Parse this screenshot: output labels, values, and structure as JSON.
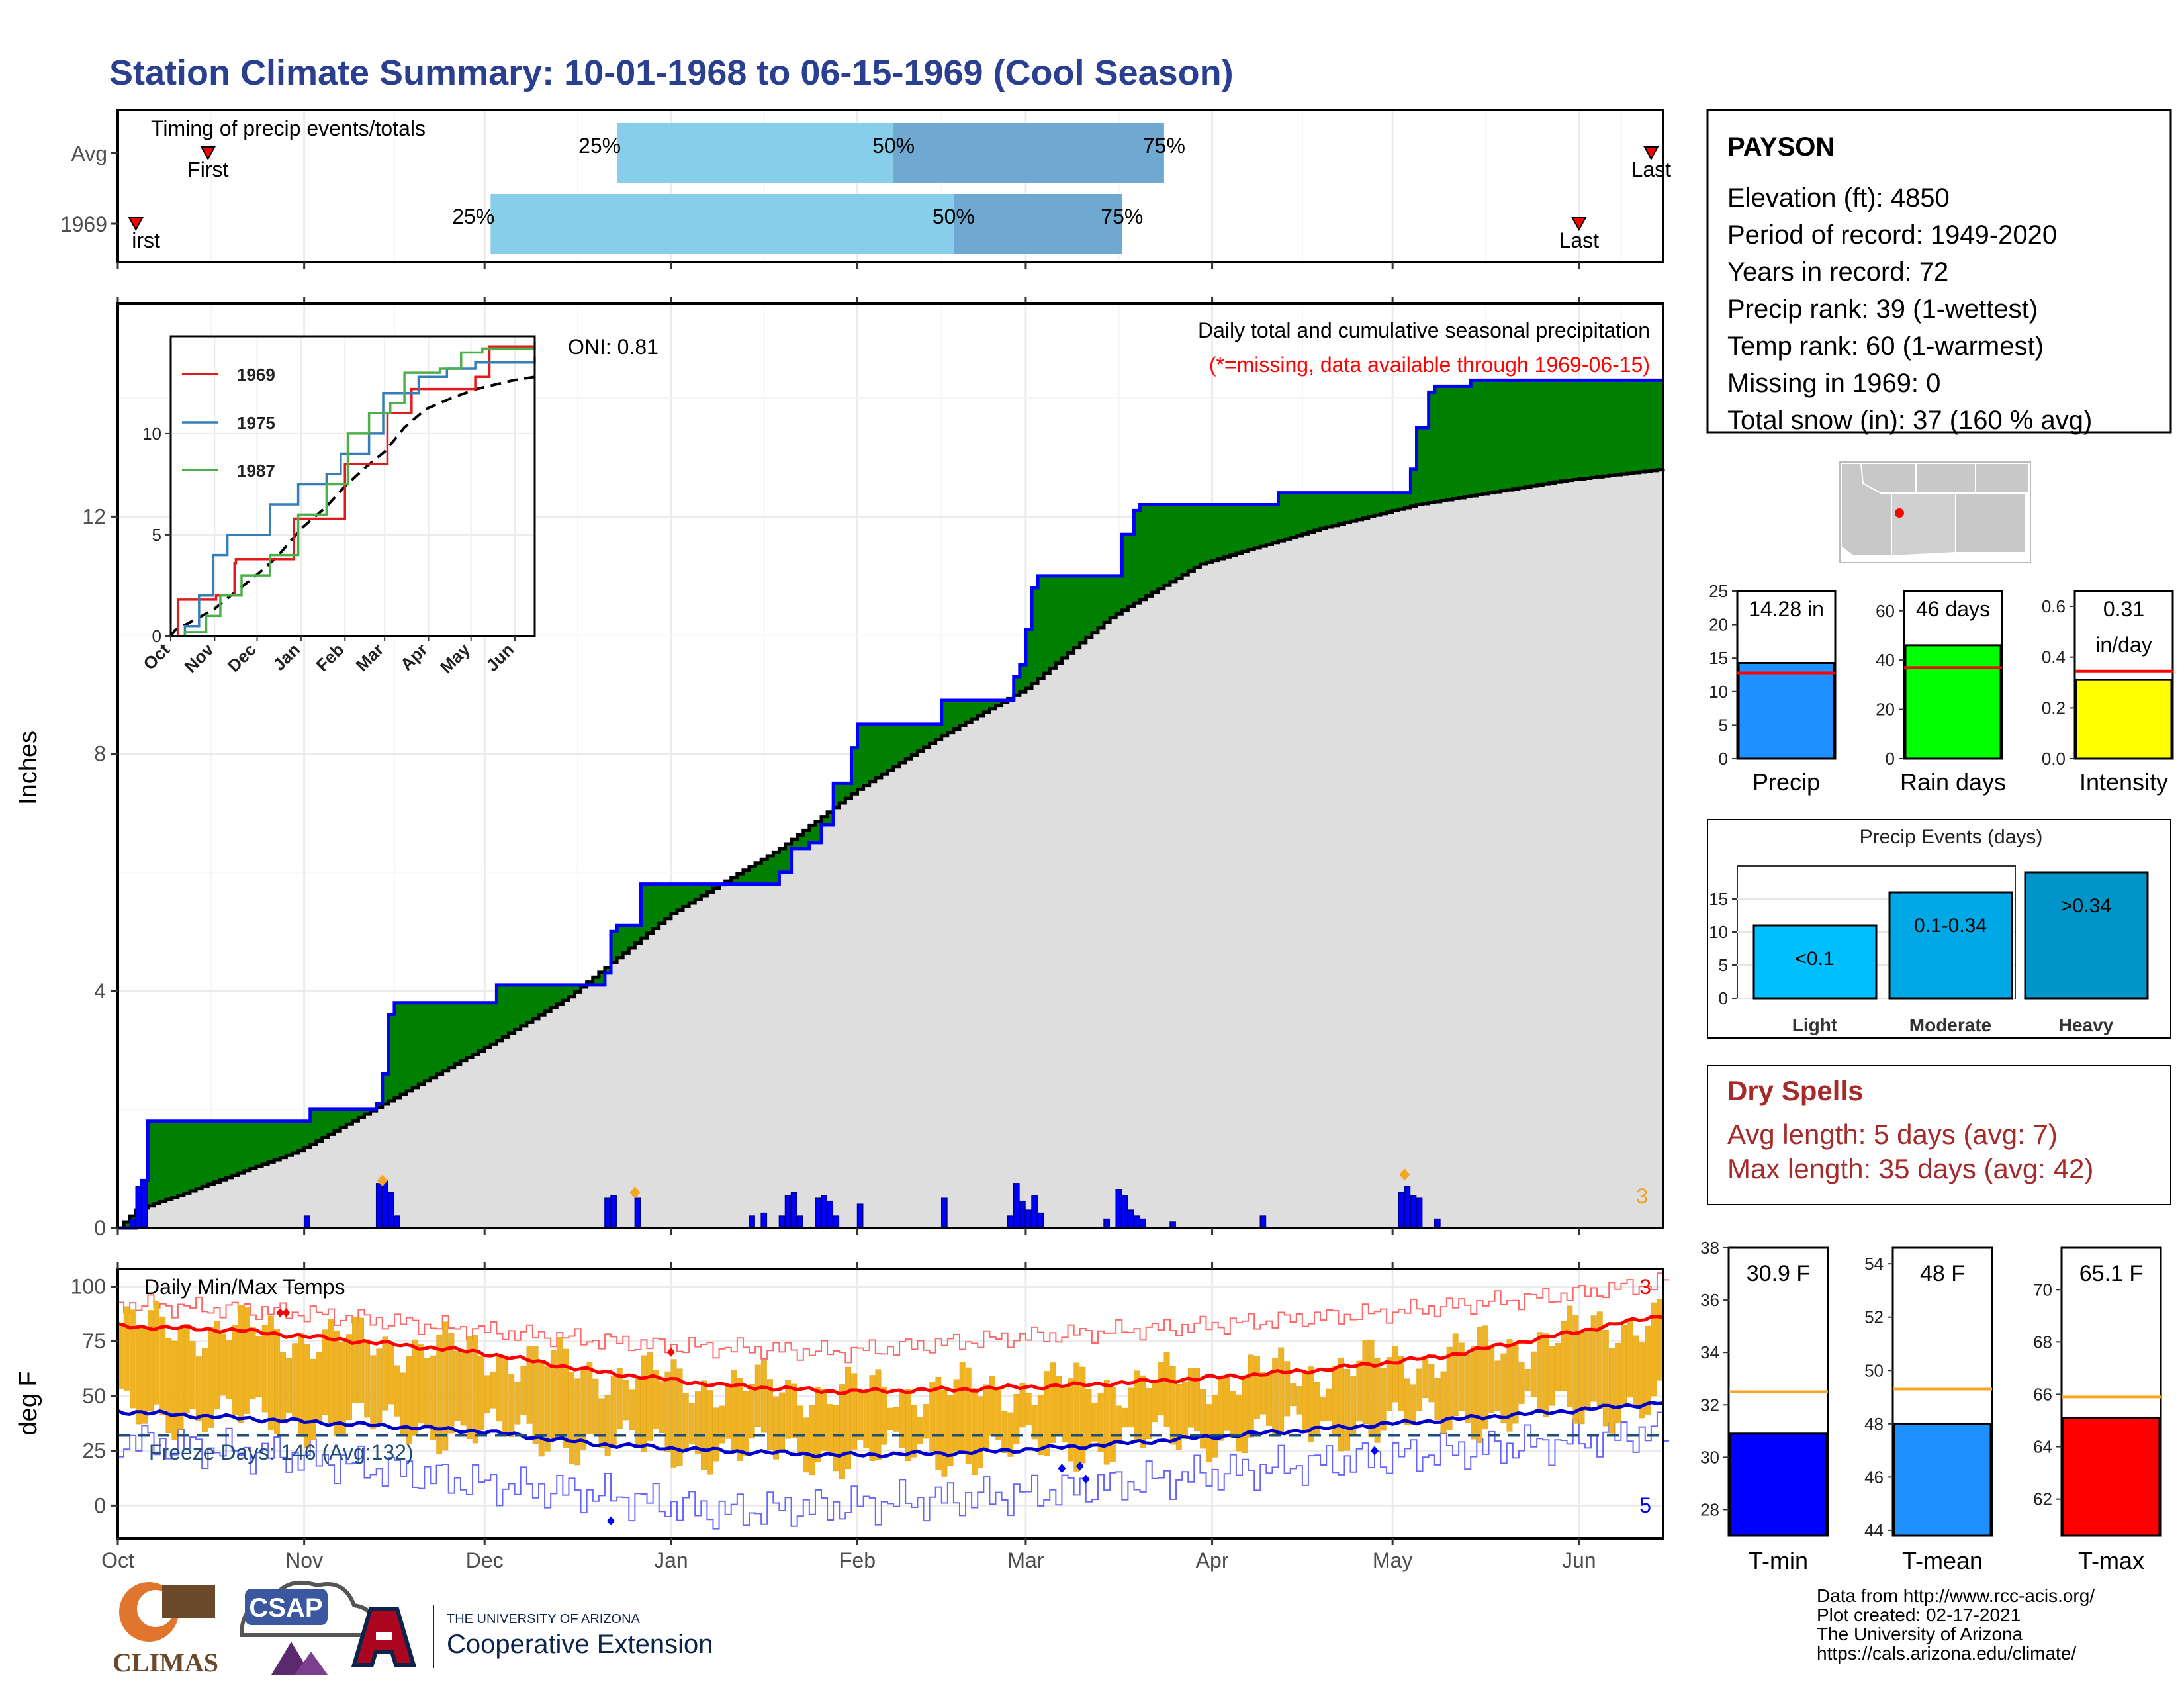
{
  "title": "Station Climate Summary: 10-01-1968 to 06-15-1969 (Cool Season)",
  "colors": {
    "title": "#2a3f8f",
    "green": "#008000",
    "blue": "#0000ff",
    "gray": "#dedede",
    "orange": "#f0b323",
    "red": "#ff0000",
    "dry": "#a52a2a",
    "light_blue": "#87ceeb",
    "mid_blue": "#6fa8d1"
  },
  "timing": {
    "title": "Timing of precip events/totals",
    "rows": [
      {
        "label": "Avg",
        "first_label": "First",
        "last_label": "Last",
        "p25": "25%",
        "p50": "50%",
        "p75": "75%",
        "first_day": 15,
        "q25_day": 83,
        "q50_day": 129,
        "q75_day": 174,
        "last_day": 255
      },
      {
        "label": "1969",
        "first_label": "irst",
        "last_label": "Last",
        "p25": "25%",
        "p50": "50%",
        "p75": "75%",
        "first_day": 3,
        "q25_day": 62,
        "q50_day": 139,
        "q75_day": 167,
        "last_day": 243
      }
    ]
  },
  "precip_panel": {
    "title": "Daily total and cumulative seasonal precipitation",
    "missing_note": "(*=missing, data available through 1969-06-15)",
    "oni": "ONI: 0.81",
    "ylabel": "Inches",
    "yticks": [
      "0",
      "4",
      "8",
      "12"
    ],
    "count_label": "3",
    "insert": {
      "legend": [
        "1969",
        "1975",
        "1987"
      ],
      "yticks": [
        "0",
        "5",
        "10"
      ],
      "xticks": [
        "Oct",
        "Nov",
        "Dec",
        "Jan",
        "Feb",
        "Mar",
        "Apr",
        "May",
        "Jun"
      ]
    }
  },
  "temp_panel": {
    "title": "Daily Min/Max Temps",
    "ylabel": "deg F",
    "yticks": [
      "0",
      "25",
      "50",
      "75",
      "100"
    ],
    "freeze_label": "Freeze Days: 146 (Avg:132)",
    "count_max": "3",
    "count_min": "5"
  },
  "months": [
    "Oct",
    "Nov",
    "Dec",
    "Jan",
    "Feb",
    "Mar",
    "Apr",
    "May",
    "Jun"
  ],
  "station": {
    "name": "PAYSON",
    "lines": [
      "Elevation (ft): 4850",
      "Period of record: 1949-2020",
      "Years in record: 72",
      "Precip rank: 39 (1-wettest)",
      "Temp rank: 60 (1-warmest)",
      "Missing in 1969: 0",
      "Total snow (in): 37 (160 % avg)"
    ]
  },
  "summary_bars": [
    {
      "label": "Precip",
      "value_text": "14.28 in",
      "yticks": [
        "0",
        "5",
        "10",
        "15",
        "20",
        "25"
      ],
      "ymax": 25,
      "value": 14.28,
      "avg": 12.8,
      "color": "#1e90ff"
    },
    {
      "label": "Rain days",
      "value_text": "46 days",
      "yticks": [
        "0",
        "20",
        "40",
        "60"
      ],
      "ymax": 68,
      "value": 46,
      "avg": 37,
      "color": "#00ff00"
    },
    {
      "label": "Intensity",
      "value_text": "0.31",
      "value_text2": "in/day",
      "yticks": [
        "0.0",
        "0.2",
        "0.4",
        "0.6"
      ],
      "ymax": 0.66,
      "value": 0.31,
      "avg": 0.345,
      "color": "#ffff00"
    }
  ],
  "precip_events": {
    "title": "Precip Events (days)",
    "yticks": [
      "0",
      "5",
      "10",
      "15"
    ],
    "categories": [
      "Light",
      "Moderate",
      "Heavy"
    ],
    "labels": [
      "<0.1",
      "0.1-0.34",
      ">0.34"
    ],
    "values": [
      11,
      16,
      19
    ],
    "colors": [
      "#00bfff",
      "#00a9e6",
      "#0095c8"
    ]
  },
  "dry_spells": {
    "title": "Dry Spells",
    "avg": "Avg length: 5 days (avg: 7)",
    "max": "Max length: 35 days (avg: 42)"
  },
  "temp_bars": [
    {
      "label": "T-min",
      "value_text": "30.9 F",
      "yticks": [
        "28",
        "30",
        "32",
        "34",
        "36",
        "38"
      ],
      "ymin": 27,
      "ymax": 38,
      "value": 30.9,
      "avg": 32.5,
      "color": "#0000ff"
    },
    {
      "label": "T-mean",
      "value_text": "48 F",
      "yticks": [
        "44",
        "46",
        "48",
        "50",
        "52",
        "54"
      ],
      "ymin": 43.8,
      "ymax": 54.6,
      "value": 48,
      "avg": 49.3,
      "color": "#1e90ff"
    },
    {
      "label": "T-max",
      "value_text": "65.1 F",
      "yticks": [
        "62",
        "64",
        "66",
        "68",
        "70"
      ],
      "ymin": 60.6,
      "ymax": 71.6,
      "value": 65.1,
      "avg": 65.9,
      "color": "#ff0000"
    }
  ],
  "footer": {
    "lines": [
      "Data from http://www.rcc-acis.org/",
      "Plot created: 02-17-2021",
      "The University of Arizona",
      "https://cals.arizona.edu/climate/"
    ],
    "logo1": "CLIMAS",
    "logo2": "CSAP",
    "logo3a": "THE UNIVERSITY OF ARIZONA",
    "logo3b": "Cooperative Extension"
  },
  "chart_data": [
    {
      "type": "area",
      "title": "Daily total and cumulative seasonal precipitation",
      "ylabel": "Inches",
      "ylim": [
        0,
        15.6
      ],
      "x_unit": "days since Oct 1",
      "cumulative_1969": [
        [
          0,
          0
        ],
        [
          3,
          0.1
        ],
        [
          4,
          0.8
        ],
        [
          5,
          1.8
        ],
        [
          31,
          1.8
        ],
        [
          32,
          2.0
        ],
        [
          41,
          2.0
        ],
        [
          43,
          2.1
        ],
        [
          44,
          2.6
        ],
        [
          45,
          3.6
        ],
        [
          46,
          3.8
        ],
        [
          62,
          3.8
        ],
        [
          63,
          4.1
        ],
        [
          79,
          4.1
        ],
        [
          81,
          4.3
        ],
        [
          82,
          5.0
        ],
        [
          83,
          5.1
        ],
        [
          86,
          5.1
        ],
        [
          87,
          5.8
        ],
        [
          105,
          5.8
        ],
        [
          110,
          6.0
        ],
        [
          112,
          6.4
        ],
        [
          115,
          6.5
        ],
        [
          117,
          6.8
        ],
        [
          119,
          7.5
        ],
        [
          122,
          8.1
        ],
        [
          123,
          8.5
        ],
        [
          136,
          8.5
        ],
        [
          137,
          8.9
        ],
        [
          148,
          8.9
        ],
        [
          149,
          9.3
        ],
        [
          150,
          9.5
        ],
        [
          151,
          10.1
        ],
        [
          152,
          10.8
        ],
        [
          153,
          11.0
        ],
        [
          164,
          11.0
        ],
        [
          167,
          11.7
        ],
        [
          169,
          12.1
        ],
        [
          170,
          12.2
        ],
        [
          190,
          12.2
        ],
        [
          193,
          12.4
        ],
        [
          213,
          12.4
        ],
        [
          215,
          12.8
        ],
        [
          216,
          13.5
        ],
        [
          218,
          14.1
        ],
        [
          219,
          14.2
        ],
        [
          225,
          14.3
        ],
        [
          257,
          14.3
        ]
      ],
      "average_cumulative": [
        [
          0,
          0
        ],
        [
          3,
          0.3
        ],
        [
          10,
          0.55
        ],
        [
          30,
          1.3
        ],
        [
          46,
          2.2
        ],
        [
          62,
          3.1
        ],
        [
          75,
          3.9
        ],
        [
          92,
          5.3
        ],
        [
          110,
          6.4
        ],
        [
          123,
          7.4
        ],
        [
          137,
          8.3
        ],
        [
          151,
          9.1
        ],
        [
          165,
          10.3
        ],
        [
          180,
          11.2
        ],
        [
          200,
          11.8
        ],
        [
          216,
          12.2
        ],
        [
          240,
          12.6
        ],
        [
          257,
          12.8
        ]
      ],
      "daily_bars": [
        [
          2,
          0.15
        ],
        [
          3,
          0.7
        ],
        [
          4,
          0.8
        ],
        [
          31,
          0.2
        ],
        [
          43,
          0.75
        ],
        [
          44,
          0.8
        ],
        [
          45,
          0.6
        ],
        [
          46,
          0.2
        ],
        [
          81,
          0.5
        ],
        [
          82,
          0.55
        ],
        [
          86,
          0.5
        ],
        [
          105,
          0.2
        ],
        [
          107,
          0.25
        ],
        [
          110,
          0.2
        ],
        [
          111,
          0.55
        ],
        [
          112,
          0.6
        ],
        [
          113,
          0.2
        ],
        [
          116,
          0.5
        ],
        [
          117,
          0.55
        ],
        [
          118,
          0.45
        ],
        [
          119,
          0.2
        ],
        [
          123,
          0.4
        ],
        [
          137,
          0.5
        ],
        [
          148,
          0.2
        ],
        [
          149,
          0.75
        ],
        [
          150,
          0.45
        ],
        [
          151,
          0.3
        ],
        [
          152,
          0.55
        ],
        [
          153,
          0.25
        ],
        [
          164,
          0.15
        ],
        [
          166,
          0.65
        ],
        [
          167,
          0.55
        ],
        [
          168,
          0.3
        ],
        [
          169,
          0.2
        ],
        [
          170,
          0.15
        ],
        [
          175,
          0.1
        ],
        [
          190,
          0.2
        ],
        [
          213,
          0.6
        ],
        [
          214,
          0.7
        ],
        [
          215,
          0.55
        ],
        [
          216,
          0.5
        ],
        [
          219,
          0.15
        ]
      ],
      "series_insert": [
        {
          "name": "1969",
          "color": "#e31a1c",
          "points": [
            [
              0,
              0
            ],
            [
              5,
              1.8
            ],
            [
              31,
              1.8
            ],
            [
              32,
              2.0
            ],
            [
              45,
              3.6
            ],
            [
              46,
              3.8
            ],
            [
              62,
              3.8
            ],
            [
              87,
              5.8
            ],
            [
              105,
              5.8
            ],
            [
              123,
              8.5
            ],
            [
              136,
              8.5
            ],
            [
              153,
              11.0
            ],
            [
              164,
              11.0
            ],
            [
              170,
              12.2
            ],
            [
              215,
              12.8
            ],
            [
              225,
              14.3
            ],
            [
              257,
              14.3
            ]
          ]
        },
        {
          "name": "1975",
          "color": "#377eb8",
          "points": [
            [
              0,
              0
            ],
            [
              10,
              0.5
            ],
            [
              20,
              2.0
            ],
            [
              30,
              4.0
            ],
            [
              40,
              5.0
            ],
            [
              60,
              5.0
            ],
            [
              70,
              6.5
            ],
            [
              90,
              7.5
            ],
            [
              110,
              8.0
            ],
            [
              120,
              9.0
            ],
            [
              140,
              10.0
            ],
            [
              150,
              12.0
            ],
            [
              175,
              12.8
            ],
            [
              195,
              13.2
            ],
            [
              215,
              13.5
            ],
            [
              257,
              13.8
            ]
          ]
        },
        {
          "name": "1987",
          "color": "#4daf4a",
          "points": [
            [
              0,
              0
            ],
            [
              10,
              0.2
            ],
            [
              25,
              1.0
            ],
            [
              35,
              2.0
            ],
            [
              50,
              3.0
            ],
            [
              70,
              4.0
            ],
            [
              90,
              6.0
            ],
            [
              110,
              7.5
            ],
            [
              125,
              10.0
            ],
            [
              140,
              11.0
            ],
            [
              155,
              11.5
            ],
            [
              165,
              13.0
            ],
            [
              190,
              13.2
            ],
            [
              205,
              14.0
            ],
            [
              220,
              14.2
            ],
            [
              257,
              14.5
            ]
          ]
        }
      ]
    },
    {
      "type": "bar",
      "title": "Daily Min/Max Temps",
      "ylabel": "deg F",
      "ylim": [
        -15,
        108
      ],
      "series": [
        {
          "name": "avg_max",
          "points": [
            [
              0,
              82
            ],
            [
              20,
              80
            ],
            [
              40,
              75
            ],
            [
              60,
              70
            ],
            [
              80,
              61
            ],
            [
              100,
              55
            ],
            [
              120,
              52
            ],
            [
              140,
              53
            ],
            [
              160,
              55
            ],
            [
              180,
              58
            ],
            [
              200,
              62
            ],
            [
              220,
              68
            ],
            [
              240,
              78
            ],
            [
              257,
              87
            ]
          ]
        },
        {
          "name": "avg_min",
          "points": [
            [
              0,
              43
            ],
            [
              20,
              40
            ],
            [
              40,
              37
            ],
            [
              60,
              34
            ],
            [
              80,
              28
            ],
            [
              100,
              25
            ],
            [
              120,
              23
            ],
            [
              140,
              24
            ],
            [
              160,
              27
            ],
            [
              180,
              31
            ],
            [
              200,
              35
            ],
            [
              220,
              39
            ],
            [
              240,
              43
            ],
            [
              257,
              47
            ]
          ]
        },
        {
          "name": "record_max",
          "points": [
            [
              0,
              92
            ],
            [
              30,
              88
            ],
            [
              60,
              80
            ],
            [
              90,
              73
            ],
            [
              120,
              70
            ],
            [
              150,
              77
            ],
            [
              180,
              82
            ],
            [
              210,
              88
            ],
            [
              240,
              96
            ],
            [
              257,
              102
            ]
          ]
        },
        {
          "name": "record_min",
          "points": [
            [
              0,
              30
            ],
            [
              30,
              22
            ],
            [
              60,
              10
            ],
            [
              80,
              5
            ],
            [
              100,
              -3
            ],
            [
              120,
              0
            ],
            [
              150,
              5
            ],
            [
              180,
              14
            ],
            [
              210,
              22
            ],
            [
              240,
              29
            ],
            [
              257,
              34
            ]
          ]
        }
      ],
      "freeze_line": 32
    }
  ]
}
